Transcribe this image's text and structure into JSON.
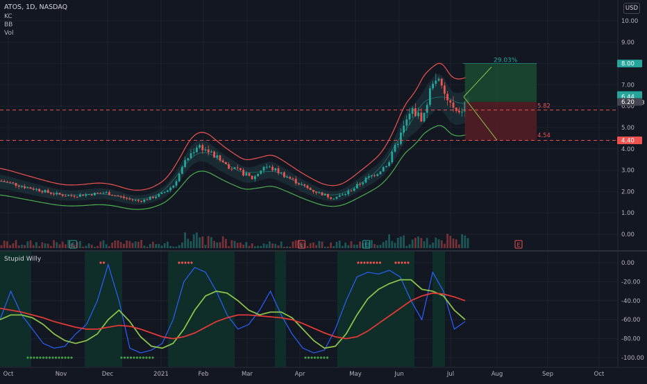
{
  "header": {
    "symbol": "ATOS, 1D, NASDAQ",
    "indicators": [
      "KC",
      "BB",
      "Vol"
    ],
    "currency": "USD"
  },
  "subpane": {
    "title": "Stupid Willy"
  },
  "colors": {
    "background": "#131722",
    "grid": "#1e222d",
    "up": "#26a69a",
    "down": "#ef5350",
    "kc_upper": "#ef5350",
    "kc_lower": "#4caf50",
    "bb_fill": "#1f3b42",
    "green_zone": "#1e3a2f",
    "red_zone": "#3d1c22",
    "osc_blue": "#2962ff",
    "osc_green": "#8bc34a",
    "osc_red": "#e53935",
    "osc_bg": "#0f2e2a",
    "dots_red": "#ef5350",
    "dots_green": "#43a047"
  },
  "chart_data": [
    {
      "type": "candlestick",
      "title": "ATOS, 1D, NASDAQ",
      "x_ticks": [
        "Oct",
        "Nov",
        "Dec",
        "2021",
        "Feb",
        "Mar",
        "Apr",
        "May",
        "Jun",
        "Jul",
        "Aug",
        "Sep",
        "Oct"
      ],
      "y_ticks": [
        "0.00",
        "1.00",
        "2.00",
        "3.00",
        "4.00",
        "5.00",
        "6.00",
        "7.00",
        "8.00",
        "9.00",
        "10.00"
      ],
      "ylim": [
        0,
        10
      ],
      "price_labels": [
        {
          "text": "8.00",
          "value": 8.0,
          "color": "#26a69a"
        },
        {
          "text": "6.44",
          "sub": "02:56:53",
          "value": 6.44,
          "color": "#26a69a"
        },
        {
          "text": "6.20",
          "value": 6.2,
          "color": "#434651"
        },
        {
          "text": "4.40",
          "value": 4.4,
          "color": "#ef5350"
        }
      ],
      "dashed_levels": [
        {
          "value": 5.82,
          "label": "5.82",
          "color": "#ef5350"
        },
        {
          "value": 4.4,
          "color": "#ef5350"
        }
      ],
      "annotations": [
        {
          "text": "29.03%",
          "color": "#26a69a"
        },
        {
          "text": "4.54",
          "color": "#ef5350"
        }
      ],
      "earnings_markers": [
        {
          "text": "E",
          "date": "Nov 10",
          "color": "#26a69a"
        },
        {
          "text": "E",
          "date": "Mar 31",
          "color": "#ef5350"
        },
        {
          "text": "E",
          "date": "May 10",
          "color": "#26a69a"
        },
        {
          "text": "E",
          "date": "Aug 12",
          "color": "#ef5350"
        }
      ],
      "position": {
        "entry": 6.2,
        "target": 8.0,
        "stop": 4.4
      },
      "series": [
        {
          "name": "close",
          "points": [
            [
              "Sep 20",
              2.55
            ],
            [
              "Sep 27",
              2.5
            ],
            [
              "Oct 5",
              2.35
            ],
            [
              "Oct 12",
              2.2
            ],
            [
              "Oct 19",
              2.1
            ],
            [
              "Oct 26",
              1.95
            ],
            [
              "Nov 2",
              1.85
            ],
            [
              "Nov 9",
              1.8
            ],
            [
              "Nov 16",
              1.85
            ],
            [
              "Nov 23",
              1.9
            ],
            [
              "Nov 30",
              1.95
            ],
            [
              "Dec 7",
              1.8
            ],
            [
              "Dec 14",
              1.65
            ],
            [
              "Dec 21",
              1.55
            ],
            [
              "Dec 28",
              1.7
            ],
            [
              "Jan 4",
              1.9
            ],
            [
              "Jan 11",
              2.3
            ],
            [
              "Jan 19",
              3.5
            ],
            [
              "Jan 26",
              4.2
            ],
            [
              "Feb 1",
              3.9
            ],
            [
              "Feb 8",
              3.5
            ],
            [
              "Feb 16",
              3.1
            ],
            [
              "Feb 22",
              2.9
            ],
            [
              "Mar 1",
              2.6
            ],
            [
              "Mar 8",
              3.2
            ],
            [
              "Mar 15",
              3.0
            ],
            [
              "Mar 22",
              2.7
            ],
            [
              "Mar 29",
              2.4
            ],
            [
              "Apr 5",
              2.1
            ],
            [
              "Apr 12",
              1.9
            ],
            [
              "Apr 19",
              1.7
            ],
            [
              "Apr 26",
              1.85
            ],
            [
              "May 3",
              2.2
            ],
            [
              "May 10",
              2.6
            ],
            [
              "May 17",
              2.9
            ],
            [
              "May 24",
              3.4
            ],
            [
              "Jun 1",
              4.8
            ],
            [
              "Jun 7",
              5.8
            ],
            [
              "Jun 14",
              5.4
            ],
            [
              "Jun 21",
              7.5
            ],
            [
              "Jun 28",
              6.4
            ],
            [
              "Jul 6",
              5.5
            ],
            [
              "Jul 12",
              6.44
            ]
          ]
        }
      ]
    },
    {
      "type": "line",
      "title": "Stupid Willy",
      "y_ticks": [
        "0.00",
        "-20.00",
        "-40.00",
        "-60.00",
        "-80.00",
        "-100.00"
      ],
      "ylim": [
        -105,
        5
      ],
      "series": [
        {
          "name": "",
          "color": "#2962ff",
          "values": [
            -60,
            -30,
            -55,
            -70,
            -85,
            -90,
            -88,
            -75,
            -65,
            -40,
            -2,
            -40,
            -90,
            -95,
            -92,
            -85,
            -60,
            -20,
            -5,
            -10,
            -30,
            -55,
            -70,
            -65,
            -50,
            -30,
            -55,
            -75,
            -90,
            -95,
            -92,
            -70,
            -40,
            -15,
            -10,
            -12,
            -8,
            -15,
            -40,
            -60,
            -10,
            -30,
            -70,
            -62
          ]
        },
        {
          "name": "",
          "color": "#8bc34a",
          "values": [
            -60,
            -55,
            -55,
            -58,
            -65,
            -75,
            -82,
            -85,
            -82,
            -75,
            -60,
            -50,
            -62,
            -78,
            -88,
            -90,
            -85,
            -70,
            -50,
            -35,
            -30,
            -32,
            -40,
            -50,
            -55,
            -52,
            -52,
            -58,
            -70,
            -82,
            -90,
            -88,
            -75,
            -55,
            -38,
            -28,
            -22,
            -18,
            -18,
            -28,
            -30,
            -35,
            -50,
            -60
          ]
        },
        {
          "name": "",
          "color": "#e53935",
          "values": [
            -48,
            -50,
            -52,
            -55,
            -58,
            -62,
            -65,
            -68,
            -70,
            -70,
            -68,
            -66,
            -67,
            -70,
            -74,
            -78,
            -80,
            -78,
            -74,
            -68,
            -62,
            -58,
            -55,
            -55,
            -56,
            -57,
            -58,
            -60,
            -64,
            -69,
            -74,
            -78,
            -80,
            -78,
            -72,
            -64,
            -56,
            -48,
            -40,
            -35,
            -32,
            -33,
            -36,
            -40
          ]
        }
      ]
    }
  ]
}
